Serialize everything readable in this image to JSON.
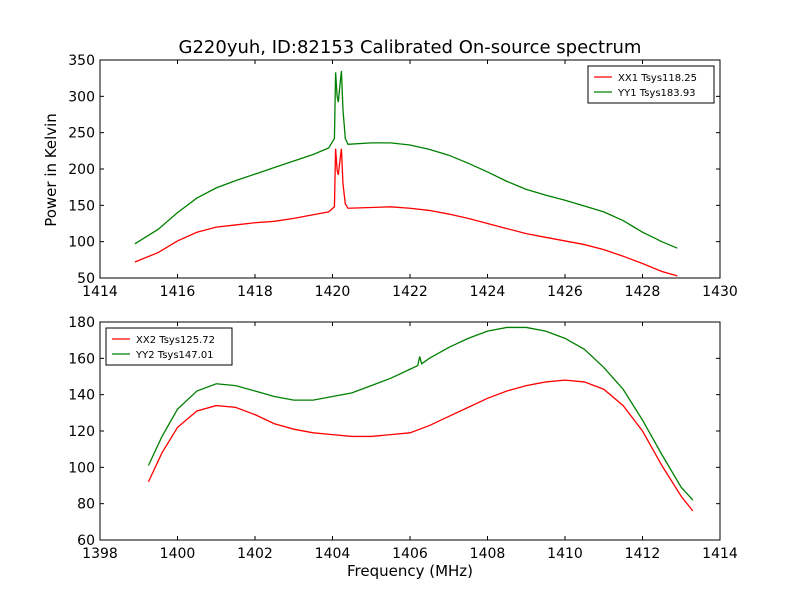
{
  "chart_data": [
    {
      "type": "line",
      "title": "G220yuh, ID:82153 Calibrated On-source spectrum",
      "xlabel": "",
      "ylabel": "Power in Kelvin",
      "xlim": [
        1414,
        1430
      ],
      "ylim": [
        50,
        350
      ],
      "xticks": [
        1414,
        1416,
        1418,
        1420,
        1422,
        1424,
        1426,
        1428,
        1430
      ],
      "yticks": [
        50,
        100,
        150,
        200,
        250,
        300,
        350
      ],
      "legend_position": "upper right",
      "series": [
        {
          "name": "XX1 Tsys118.25",
          "color": "#ff0000",
          "points": [
            [
              1414.9,
              72
            ],
            [
              1415.5,
              85
            ],
            [
              1416,
              101
            ],
            [
              1416.5,
              113
            ],
            [
              1417,
              120
            ],
            [
              1417.5,
              123
            ],
            [
              1418,
              126
            ],
            [
              1418.5,
              128
            ],
            [
              1419,
              132
            ],
            [
              1419.5,
              137
            ],
            [
              1419.9,
              141
            ],
            [
              1420.05,
              148
            ],
            [
              1420.08,
              228
            ],
            [
              1420.12,
              198
            ],
            [
              1420.15,
              192
            ],
            [
              1420.2,
              215
            ],
            [
              1420.23,
              228
            ],
            [
              1420.27,
              180
            ],
            [
              1420.33,
              152
            ],
            [
              1420.4,
              146
            ],
            [
              1421,
              147
            ],
            [
              1421.5,
              148
            ],
            [
              1422,
              146
            ],
            [
              1422.5,
              143
            ],
            [
              1423,
              138
            ],
            [
              1423.5,
              132
            ],
            [
              1424,
              125
            ],
            [
              1424.5,
              118
            ],
            [
              1425,
              111
            ],
            [
              1425.5,
              106
            ],
            [
              1426,
              101
            ],
            [
              1426.5,
              96
            ],
            [
              1427,
              89
            ],
            [
              1427.5,
              80
            ],
            [
              1428,
              70
            ],
            [
              1428.5,
              59
            ],
            [
              1428.9,
              53
            ]
          ]
        },
        {
          "name": "YY1 Tsys183.93",
          "color": "#008000",
          "points": [
            [
              1414.9,
              97
            ],
            [
              1415.5,
              117
            ],
            [
              1416,
              140
            ],
            [
              1416.5,
              160
            ],
            [
              1417,
              174
            ],
            [
              1417.5,
              184
            ],
            [
              1418,
              193
            ],
            [
              1418.5,
              202
            ],
            [
              1419,
              211
            ],
            [
              1419.5,
              220
            ],
            [
              1419.9,
              229
            ],
            [
              1420.05,
              242
            ],
            [
              1420.08,
              333
            ],
            [
              1420.12,
              300
            ],
            [
              1420.15,
              292
            ],
            [
              1420.2,
              320
            ],
            [
              1420.23,
              335
            ],
            [
              1420.27,
              282
            ],
            [
              1420.33,
              242
            ],
            [
              1420.4,
              234
            ],
            [
              1421,
              236
            ],
            [
              1421.5,
              236
            ],
            [
              1422,
              233
            ],
            [
              1422.5,
              227
            ],
            [
              1423,
              219
            ],
            [
              1423.5,
              208
            ],
            [
              1424,
              196
            ],
            [
              1424.5,
              183
            ],
            [
              1425,
              172
            ],
            [
              1425.5,
              164
            ],
            [
              1426,
              157
            ],
            [
              1426.5,
              149
            ],
            [
              1427,
              141
            ],
            [
              1427.5,
              129
            ],
            [
              1428,
              113
            ],
            [
              1428.5,
              100
            ],
            [
              1428.9,
              91
            ]
          ]
        }
      ]
    },
    {
      "type": "line",
      "title": "",
      "xlabel": "Frequency (MHz)",
      "ylabel": "",
      "xlim": [
        1398,
        1414
      ],
      "ylim": [
        60,
        180
      ],
      "xticks": [
        1398,
        1400,
        1402,
        1404,
        1406,
        1408,
        1410,
        1412,
        1414
      ],
      "yticks": [
        60,
        80,
        100,
        120,
        140,
        160,
        180
      ],
      "legend_position": "upper left",
      "series": [
        {
          "name": "XX2 Tsys125.72",
          "color": "#ff0000",
          "points": [
            [
              1399.25,
              92
            ],
            [
              1399.6,
              108
            ],
            [
              1400,
              122
            ],
            [
              1400.5,
              131
            ],
            [
              1401,
              134
            ],
            [
              1401.5,
              133
            ],
            [
              1402,
              129
            ],
            [
              1402.5,
              124
            ],
            [
              1403,
              121
            ],
            [
              1403.5,
              119
            ],
            [
              1404,
              118
            ],
            [
              1404.5,
              117
            ],
            [
              1405,
              117
            ],
            [
              1405.5,
              118
            ],
            [
              1406,
              119
            ],
            [
              1406.5,
              123
            ],
            [
              1407,
              128
            ],
            [
              1407.5,
              133
            ],
            [
              1408,
              138
            ],
            [
              1408.5,
              142
            ],
            [
              1409,
              145
            ],
            [
              1409.5,
              147
            ],
            [
              1410,
              148
            ],
            [
              1410.5,
              147
            ],
            [
              1411,
              143
            ],
            [
              1411.5,
              134
            ],
            [
              1412,
              120
            ],
            [
              1412.5,
              101
            ],
            [
              1413,
              84
            ],
            [
              1413.3,
              76
            ]
          ]
        },
        {
          "name": "YY2 Tsys147.01",
          "color": "#008000",
          "points": [
            [
              1399.25,
              101
            ],
            [
              1399.6,
              117
            ],
            [
              1400,
              132
            ],
            [
              1400.5,
              142
            ],
            [
              1401,
              146
            ],
            [
              1401.5,
              145
            ],
            [
              1402,
              142
            ],
            [
              1402.5,
              139
            ],
            [
              1403,
              137
            ],
            [
              1403.5,
              137
            ],
            [
              1404,
              139
            ],
            [
              1404.5,
              141
            ],
            [
              1405,
              145
            ],
            [
              1405.5,
              149
            ],
            [
              1406,
              154
            ],
            [
              1406.2,
              156
            ],
            [
              1406.25,
              161
            ],
            [
              1406.3,
              157
            ],
            [
              1406.5,
              160
            ],
            [
              1407,
              166
            ],
            [
              1407.5,
              171
            ],
            [
              1408,
              175
            ],
            [
              1408.5,
              177
            ],
            [
              1409,
              177
            ],
            [
              1409.5,
              175
            ],
            [
              1410,
              171
            ],
            [
              1410.5,
              165
            ],
            [
              1411,
              155
            ],
            [
              1411.5,
              143
            ],
            [
              1412,
              126
            ],
            [
              1412.5,
              107
            ],
            [
              1413,
              89
            ],
            [
              1413.3,
              82
            ]
          ]
        }
      ]
    }
  ]
}
